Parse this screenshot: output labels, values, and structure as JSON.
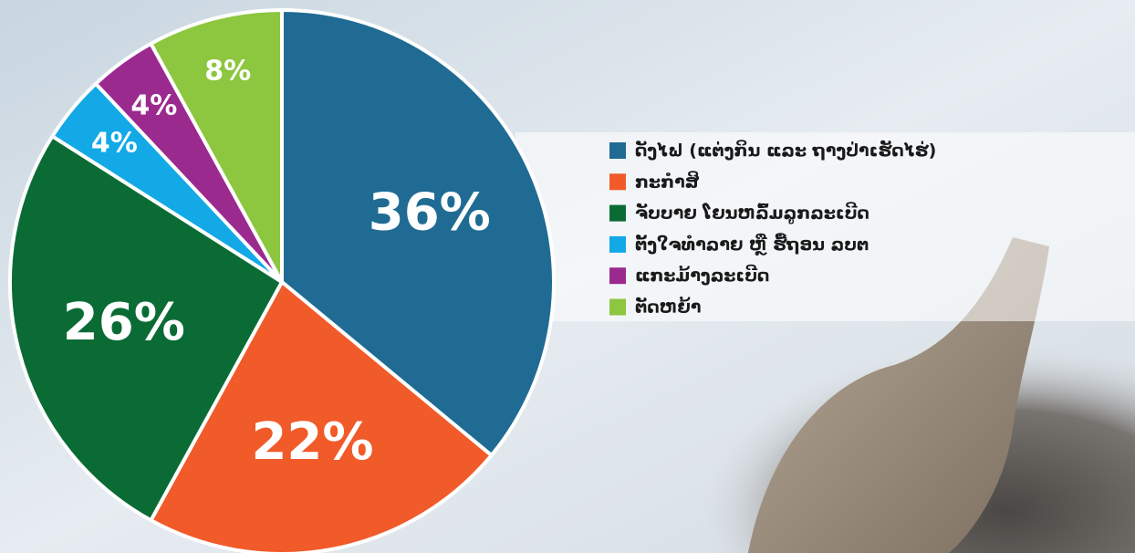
{
  "chart_data": {
    "type": "pie",
    "categories": [
      "ດັງໄຟ (ແຕ່ງກິນ ແລະ ຖາງປ່າເຮັດໄຮ່)",
      "ກະກຳສິ",
      "ຈັບບາຍ ໂຍນຫລົ້ມລູກລະເບີດ",
      "ຕັ້ງໃຈທຳລາຍ ຫຼື ຮື້ຖອນ ລບຕ",
      "ແກະມ້າງລະເບີດ",
      "ຕັດຫຍ້າ"
    ],
    "values": [
      36,
      22,
      26,
      4,
      4,
      8
    ],
    "value_labels": [
      "36%",
      "22%",
      "26%",
      "4%",
      "4%",
      "8%"
    ],
    "colors": [
      "#1f6b93",
      "#f15a29",
      "#0b6b35",
      "#12a9e6",
      "#9b2a8f",
      "#8dc63f"
    ]
  }
}
